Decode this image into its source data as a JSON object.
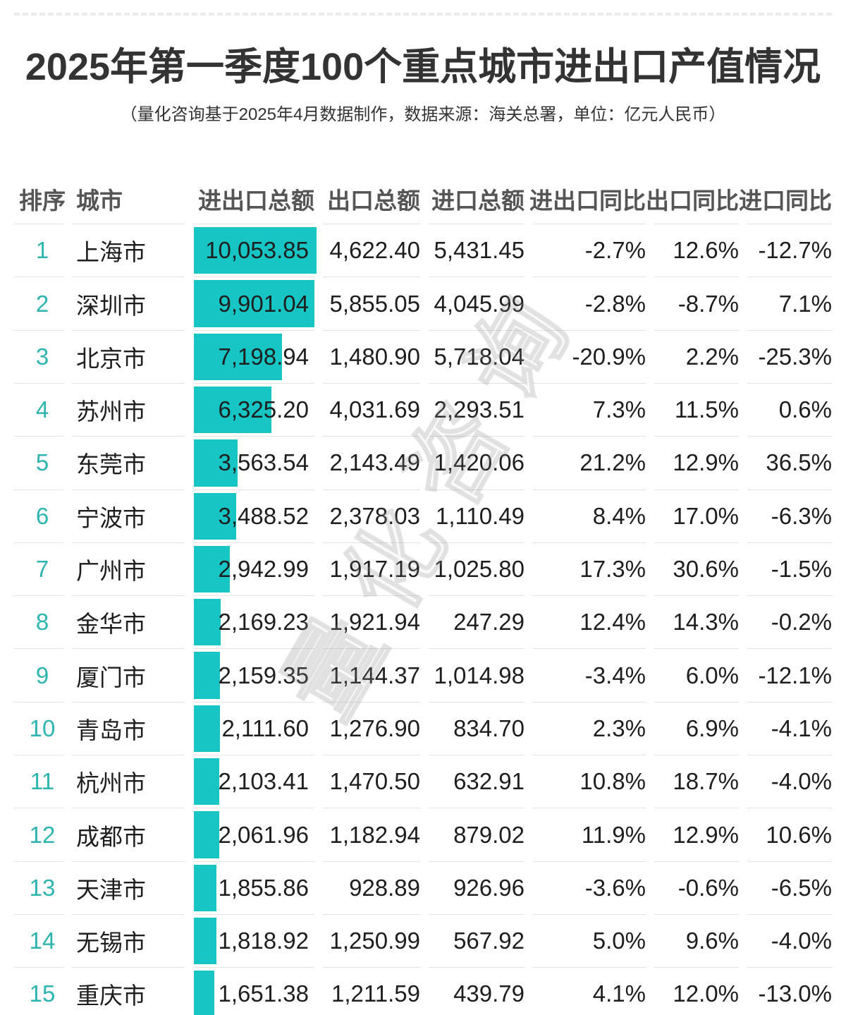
{
  "chart_data": {
    "type": "table",
    "title": "2025年第一季度100个重点城市进出口产值情况",
    "subtitle": "（量化咨询基于2025年4月数据制作，数据来源：海关总署，单位：亿元人民币）",
    "watermark": "量化咨询",
    "columns": [
      "排序",
      "城市",
      "进出口总额",
      "出口总额",
      "进口总额",
      "进出口同比",
      "出口同比",
      "进口同比"
    ],
    "bar_column": "进出口总额",
    "bar_max_value": 10053.85,
    "accent_bar_color": "#17c5c5",
    "rank_text_color": "#2db4af",
    "rows": [
      {
        "rank": "1",
        "city": "上海市",
        "total": "10,053.85",
        "export_total": "4,622.40",
        "import_total": "5,431.45",
        "total_yoy": "-2.7%",
        "export_yoy": "12.6%",
        "import_yoy": "-12.7%"
      },
      {
        "rank": "2",
        "city": "深圳市",
        "total": "9,901.04",
        "export_total": "5,855.05",
        "import_total": "4,045.99",
        "total_yoy": "-2.8%",
        "export_yoy": "-8.7%",
        "import_yoy": "7.1%"
      },
      {
        "rank": "3",
        "city": "北京市",
        "total": "7,198.94",
        "export_total": "1,480.90",
        "import_total": "5,718.04",
        "total_yoy": "-20.9%",
        "export_yoy": "2.2%",
        "import_yoy": "-25.3%"
      },
      {
        "rank": "4",
        "city": "苏州市",
        "total": "6,325.20",
        "export_total": "4,031.69",
        "import_total": "2,293.51",
        "total_yoy": "7.3%",
        "export_yoy": "11.5%",
        "import_yoy": "0.6%"
      },
      {
        "rank": "5",
        "city": "东莞市",
        "total": "3,563.54",
        "export_total": "2,143.49",
        "import_total": "1,420.06",
        "total_yoy": "21.2%",
        "export_yoy": "12.9%",
        "import_yoy": "36.5%"
      },
      {
        "rank": "6",
        "city": "宁波市",
        "total": "3,488.52",
        "export_total": "2,378.03",
        "import_total": "1,110.49",
        "total_yoy": "8.4%",
        "export_yoy": "17.0%",
        "import_yoy": "-6.3%"
      },
      {
        "rank": "7",
        "city": "广州市",
        "total": "2,942.99",
        "export_total": "1,917.19",
        "import_total": "1,025.80",
        "total_yoy": "17.3%",
        "export_yoy": "30.6%",
        "import_yoy": "-1.5%"
      },
      {
        "rank": "8",
        "city": "金华市",
        "total": "2,169.23",
        "export_total": "1,921.94",
        "import_total": "247.29",
        "total_yoy": "12.4%",
        "export_yoy": "14.3%",
        "import_yoy": "-0.2%"
      },
      {
        "rank": "9",
        "city": "厦门市",
        "total": "2,159.35",
        "export_total": "1,144.37",
        "import_total": "1,014.98",
        "total_yoy": "-3.4%",
        "export_yoy": "6.0%",
        "import_yoy": "-12.1%"
      },
      {
        "rank": "10",
        "city": "青岛市",
        "total": "2,111.60",
        "export_total": "1,276.90",
        "import_total": "834.70",
        "total_yoy": "2.3%",
        "export_yoy": "6.9%",
        "import_yoy": "-4.1%"
      },
      {
        "rank": "11",
        "city": "杭州市",
        "total": "2,103.41",
        "export_total": "1,470.50",
        "import_total": "632.91",
        "total_yoy": "10.8%",
        "export_yoy": "18.7%",
        "import_yoy": "-4.0%"
      },
      {
        "rank": "12",
        "city": "成都市",
        "total": "2,061.96",
        "export_total": "1,182.94",
        "import_total": "879.02",
        "total_yoy": "11.9%",
        "export_yoy": "12.9%",
        "import_yoy": "10.6%"
      },
      {
        "rank": "13",
        "city": "天津市",
        "total": "1,855.86",
        "export_total": "928.89",
        "import_total": "926.96",
        "total_yoy": "-3.6%",
        "export_yoy": "-0.6%",
        "import_yoy": "-6.5%"
      },
      {
        "rank": "14",
        "city": "无锡市",
        "total": "1,818.92",
        "export_total": "1,250.99",
        "import_total": "567.92",
        "total_yoy": "5.0%",
        "export_yoy": "9.6%",
        "import_yoy": "-4.0%"
      },
      {
        "rank": "15",
        "city": "重庆市",
        "total": "1,651.38",
        "export_total": "1,211.59",
        "import_total": "439.79",
        "total_yoy": "4.1%",
        "export_yoy": "12.0%",
        "import_yoy": "-13.0%"
      }
    ]
  }
}
